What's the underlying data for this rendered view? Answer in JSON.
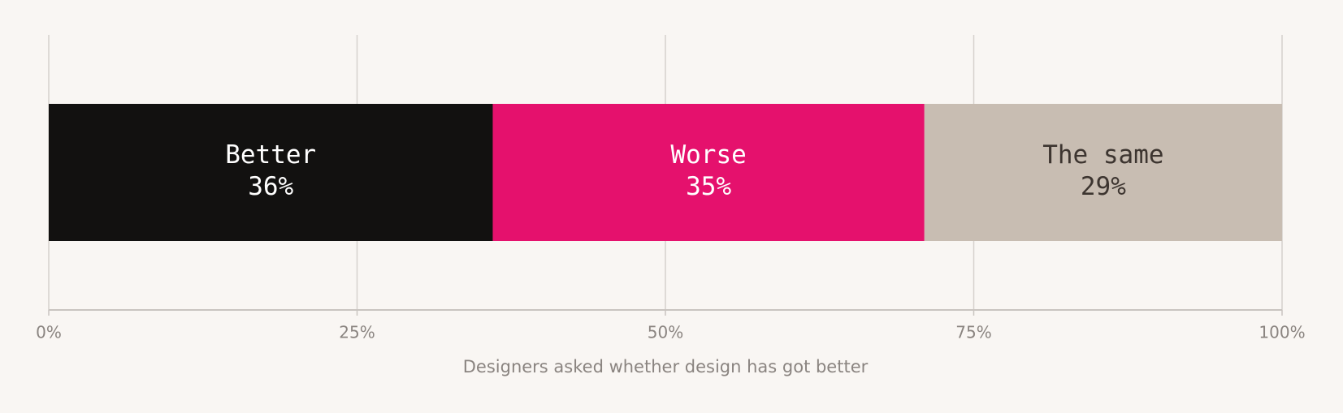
{
  "chart_data": {
    "type": "stacked_bar",
    "orientation": "horizontal",
    "xlabel": "Designers asked whether design has got better",
    "series": [
      {
        "name": "Better",
        "color": "#121110",
        "label_color": "#ffffff",
        "values": [
          36
        ],
        "value_labels": [
          "36%"
        ]
      },
      {
        "name": "Worse",
        "color": "#e5116d",
        "label_color": "#ffffff",
        "values": [
          35
        ],
        "value_labels": [
          "35%"
        ]
      },
      {
        "name": "The same",
        "color": "#c8bdb2",
        "label_color": "#3d3530",
        "values": [
          29
        ],
        "value_labels": [
          "29%"
        ]
      }
    ],
    "xlim": [
      0,
      100
    ],
    "xticks": [
      {
        "value": 0,
        "label": "0%"
      },
      {
        "value": 25,
        "label": "25%"
      },
      {
        "value": 50,
        "label": "50%"
      },
      {
        "value": 75,
        "label": "75%"
      },
      {
        "value": 100,
        "label": "100%"
      }
    ],
    "grid": true
  }
}
